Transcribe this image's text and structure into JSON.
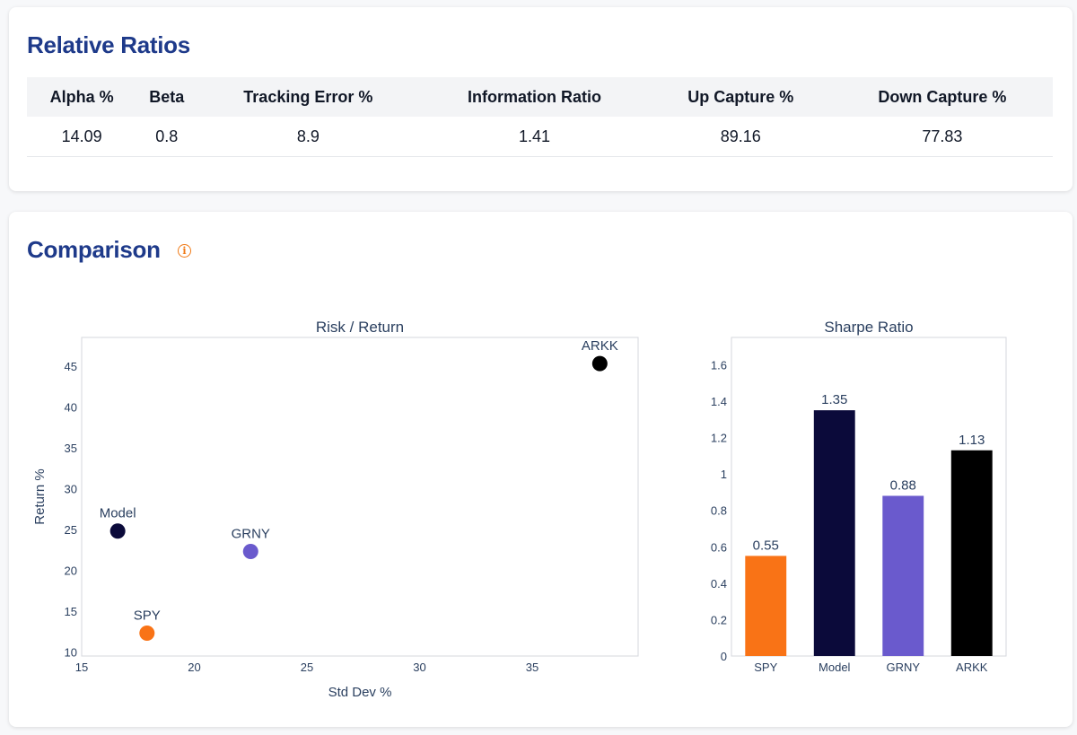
{
  "relative_ratios": {
    "title": "Relative Ratios",
    "columns": [
      "Alpha %",
      "Beta",
      "Tracking Error %",
      "Information Ratio",
      "Up Capture %",
      "Down Capture %"
    ],
    "values": [
      "14.09",
      "0.8",
      "8.9",
      "1.41",
      "89.16",
      "77.83"
    ]
  },
  "comparison": {
    "title": "Comparison",
    "info_icon": "info-circle-icon",
    "info_glyph": "i"
  },
  "chart_data": [
    {
      "type": "scatter",
      "title": "Risk / Return",
      "xlabel": "Std Dev %",
      "ylabel": "Return %",
      "xlim": [
        15,
        39.7
      ],
      "ylim": [
        9.5,
        48.5
      ],
      "xticks": [
        15,
        20,
        25,
        30,
        35
      ],
      "yticks": [
        10,
        15,
        20,
        25,
        30,
        35,
        40,
        45
      ],
      "grid": false,
      "points": [
        {
          "label": "Model",
          "x": 16.6,
          "y": 24.8,
          "color": "#0b0a3a"
        },
        {
          "label": "SPY",
          "x": 17.9,
          "y": 12.3,
          "color": "#f97316"
        },
        {
          "label": "GRNY",
          "x": 22.5,
          "y": 22.3,
          "color": "#6a5acd"
        },
        {
          "label": "ARKK",
          "x": 38.0,
          "y": 45.3,
          "color": "#000000"
        }
      ]
    },
    {
      "type": "bar",
      "title": "Sharpe Ratio",
      "categories": [
        "SPY",
        "Model",
        "GRNY",
        "ARKK"
      ],
      "values": [
        0.55,
        1.35,
        0.88,
        1.13
      ],
      "labels": [
        "0.55",
        "1.35",
        "0.88",
        "1.13"
      ],
      "colors": [
        "#f97316",
        "#0b0a3a",
        "#6a5acd",
        "#000000"
      ],
      "ylim": [
        0,
        1.75
      ],
      "yticks": [
        0,
        0.2,
        0.4,
        0.6,
        0.8,
        1,
        1.2,
        1.4,
        1.6
      ],
      "grid": false
    }
  ]
}
